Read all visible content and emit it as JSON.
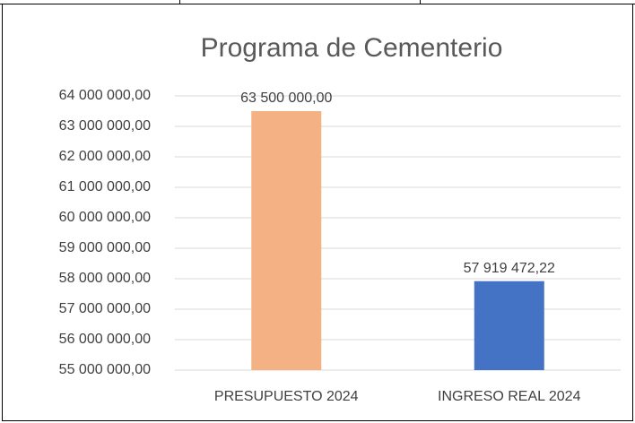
{
  "chart_data": {
    "type": "bar",
    "title": "Programa de Cementerio",
    "categories": [
      "PRESUPUESTO 2024",
      "INGRESO REAL 2024"
    ],
    "values": [
      63500000,
      57919472.22
    ],
    "value_labels": [
      "63 500 000,00",
      "57 919 472,22"
    ],
    "colors": [
      "#f4b183",
      "#4472c4"
    ],
    "ylim": [
      55000000,
      64000000
    ],
    "yticks": [
      {
        "value": 55000000,
        "label": "55 000 000,00"
      },
      {
        "value": 56000000,
        "label": "56 000 000,00"
      },
      {
        "value": 57000000,
        "label": "57 000 000,00"
      },
      {
        "value": 58000000,
        "label": "58 000 000,00"
      },
      {
        "value": 59000000,
        "label": "59 000 000,00"
      },
      {
        "value": 60000000,
        "label": "60 000 000,00"
      },
      {
        "value": 61000000,
        "label": "61 000 000,00"
      },
      {
        "value": 62000000,
        "label": "62 000 000,00"
      },
      {
        "value": 63000000,
        "label": "63 000 000,00"
      },
      {
        "value": 64000000,
        "label": "64 000 000,00"
      }
    ],
    "grid": true
  }
}
